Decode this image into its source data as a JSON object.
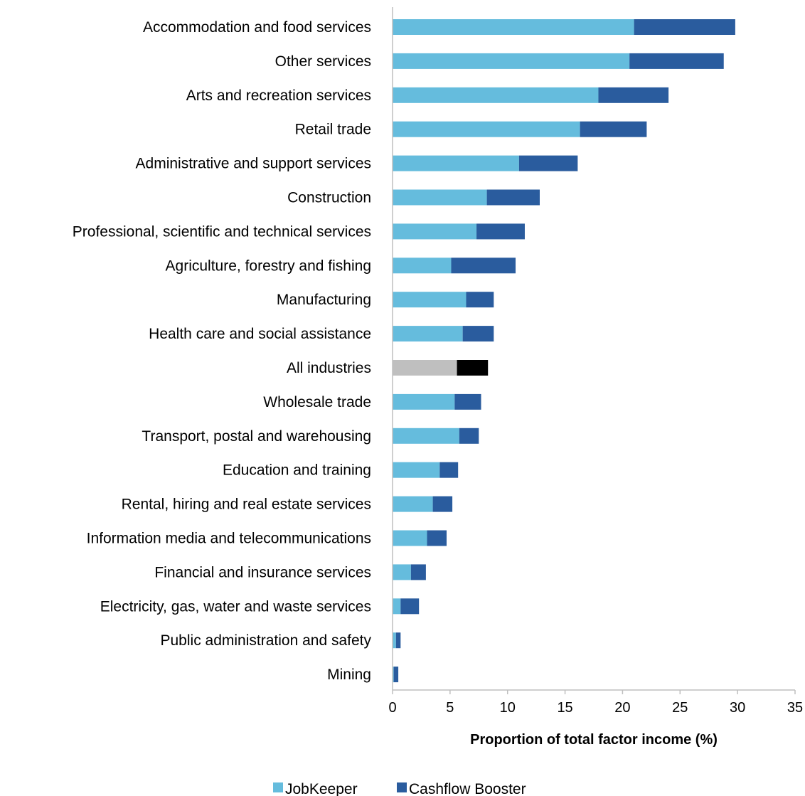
{
  "chart_data": {
    "type": "bar",
    "orientation": "horizontal",
    "stacked": true,
    "categories": [
      "Accommodation and food services",
      "Other services",
      "Arts and recreation services",
      "Retail trade",
      "Administrative and support services",
      "Construction",
      "Professional, scientific and technical services",
      "Agriculture, forestry and fishing",
      "Manufacturing",
      "Health care and social assistance",
      "All industries",
      "Wholesale trade",
      "Transport, postal and warehousing",
      "Education and training",
      "Rental, hiring and real estate services",
      "Information media and telecommunications",
      "Financial and insurance services",
      "Electricity, gas, water and waste services",
      "Public administration and safety",
      "Mining"
    ],
    "series": [
      {
        "name": "JobKeeper",
        "color": "#65BCDD",
        "values": [
          21.0,
          20.6,
          17.9,
          16.3,
          11.0,
          8.2,
          7.3,
          5.1,
          6.4,
          6.1,
          5.6,
          5.4,
          5.8,
          4.1,
          3.5,
          3.0,
          1.6,
          0.7,
          0.3,
          0.1
        ]
      },
      {
        "name": "Cashflow Booster",
        "color": "#2A5C9E",
        "values": [
          8.8,
          8.2,
          6.1,
          5.8,
          5.1,
          4.6,
          4.2,
          5.6,
          2.4,
          2.7,
          2.7,
          2.3,
          1.7,
          1.6,
          1.7,
          1.7,
          1.3,
          1.6,
          0.4,
          0.4
        ]
      }
    ],
    "highlight": {
      "category": "All industries",
      "colors": [
        "#BFBFBF",
        "#000000"
      ]
    },
    "xlabel": "Proportion of total factor income (%)",
    "ylabel": "",
    "xlim": [
      0,
      35
    ],
    "xticks": [
      0,
      5,
      10,
      15,
      20,
      25,
      30,
      35
    ],
    "grid": false,
    "legend_position": "bottom"
  }
}
